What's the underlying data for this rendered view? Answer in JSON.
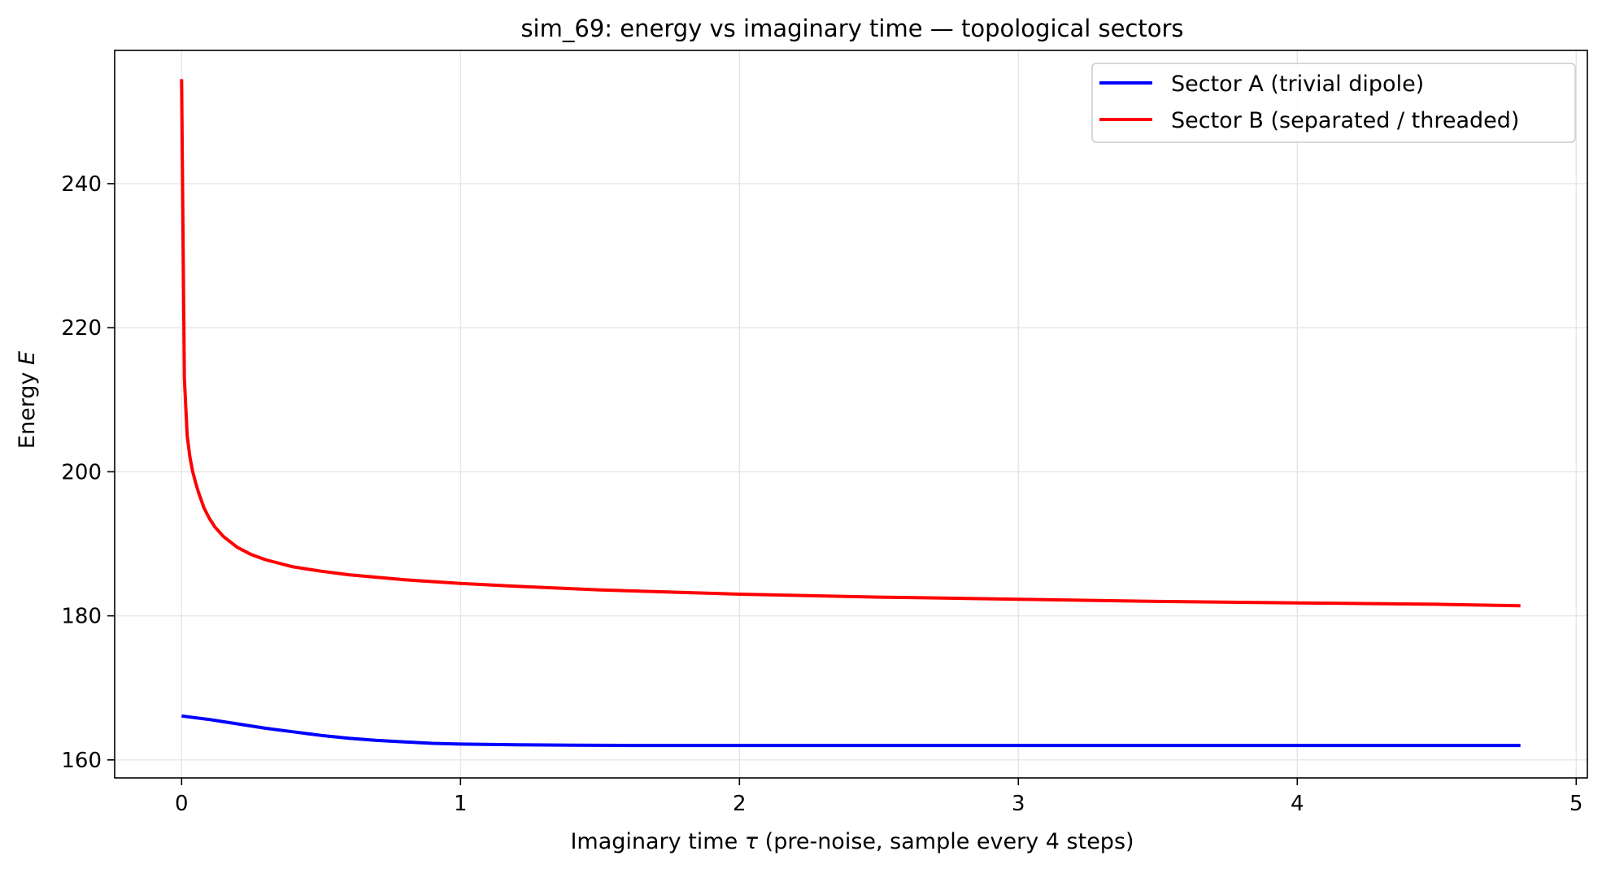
{
  "chart_data": {
    "type": "line",
    "title": "sim_69: energy vs imaginary time — topological sectors",
    "xlabel_prefix": "Imaginary time ",
    "xlabel_symbol": "τ",
    "xlabel_suffix": " (pre-noise, sample every 4 steps)",
    "ylabel_prefix": "Energy ",
    "ylabel_symbol": "E",
    "xlim": [
      -0.24,
      5.04
    ],
    "ylim": [
      157.5,
      258.5
    ],
    "x_ticks": [
      0,
      1,
      2,
      3,
      4,
      5
    ],
    "x_tick_labels": [
      "0",
      "1",
      "2",
      "3",
      "4",
      "5"
    ],
    "y_ticks": [
      160,
      180,
      200,
      220,
      240
    ],
    "y_tick_labels": [
      "160",
      "180",
      "200",
      "220",
      "240"
    ],
    "grid": true,
    "legend_position": "top-right",
    "series": [
      {
        "name": "Sector A (trivial dipole)",
        "color": "#0000ff",
        "x": [
          0,
          0.1,
          0.2,
          0.3,
          0.4,
          0.5,
          0.6,
          0.7,
          0.8,
          0.9,
          1.0,
          1.2,
          1.4,
          1.6,
          1.8,
          2.0,
          2.5,
          3.0,
          3.5,
          4.0,
          4.5,
          4.8
        ],
        "y": [
          166.1,
          165.6,
          165.0,
          164.4,
          163.9,
          163.4,
          163.0,
          162.7,
          162.5,
          162.3,
          162.2,
          162.1,
          162.05,
          162.0,
          162.0,
          162.0,
          162.0,
          162.0,
          162.0,
          162.0,
          162.0,
          162.0
        ]
      },
      {
        "name": "Sector B (separated / threaded)",
        "color": "#ff0000",
        "x": [
          0,
          0.01,
          0.02,
          0.03,
          0.04,
          0.05,
          0.06,
          0.08,
          0.1,
          0.12,
          0.15,
          0.2,
          0.25,
          0.3,
          0.4,
          0.5,
          0.6,
          0.8,
          1.0,
          1.2,
          1.5,
          2.0,
          2.5,
          3.0,
          3.5,
          4.0,
          4.5,
          4.8
        ],
        "y": [
          254.5,
          213.0,
          205.0,
          202.0,
          200.0,
          198.5,
          197.2,
          195.0,
          193.5,
          192.3,
          191.0,
          189.5,
          188.5,
          187.8,
          186.8,
          186.2,
          185.7,
          185.0,
          184.5,
          184.1,
          183.6,
          183.0,
          182.6,
          182.3,
          182.0,
          181.8,
          181.6,
          181.4
        ]
      }
    ]
  }
}
